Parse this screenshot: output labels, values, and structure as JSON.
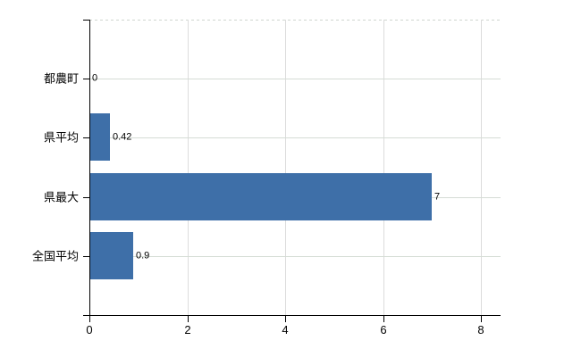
{
  "chart_data": {
    "type": "bar",
    "orientation": "horizontal",
    "title": "",
    "xlabel": "",
    "ylabel": "",
    "categories": [
      "都農町",
      "県平均",
      "県最大",
      "全国平均"
    ],
    "values": [
      0,
      0.42,
      7,
      0.9
    ],
    "value_labels": [
      "0",
      "0.42",
      "7",
      "0.9"
    ],
    "xlim": [
      0,
      8
    ],
    "x_ticks": [
      0,
      2,
      4,
      6,
      8
    ],
    "grid": true,
    "legend": "none",
    "colors": {
      "bar": "#3e6fa8",
      "axis": "#000000",
      "gridline_horizontal": "#d5dcd5",
      "gridline_vertical": "#dcdcdc",
      "text": "#000000",
      "background": "#ffffff"
    }
  }
}
